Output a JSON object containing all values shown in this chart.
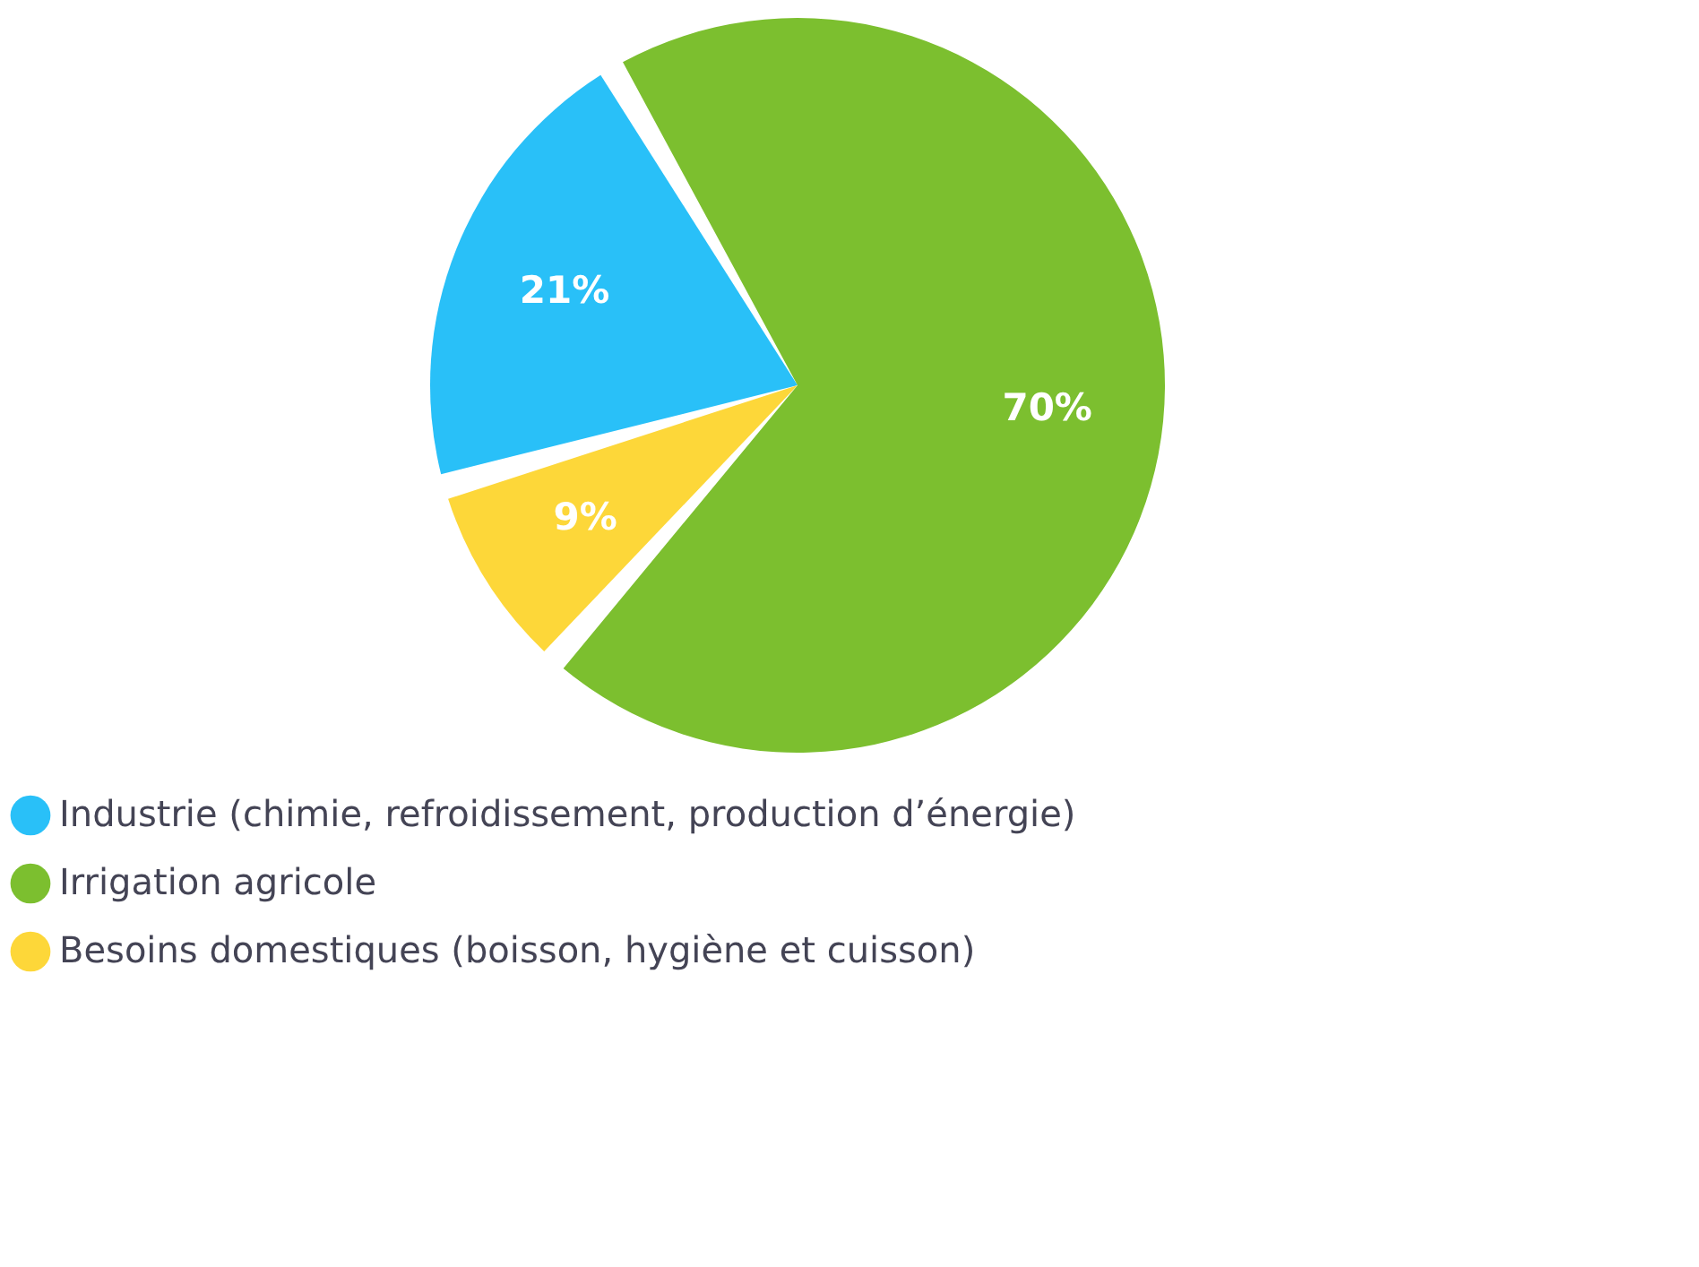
{
  "chart_data": {
    "type": "pie",
    "categories": [
      "Industrie (chimie, refroidissement, production d’énergie)",
      "Irrigation agricole",
      "Besoins domestiques (boisson, hygiène et cuisson)"
    ],
    "values": [
      21,
      70,
      9
    ],
    "colors": [
      "#29c0f8",
      "#7cbf2f",
      "#fdd739"
    ],
    "value_labels": [
      "21%",
      "70%",
      "9%"
    ],
    "legend": "bottom left"
  }
}
